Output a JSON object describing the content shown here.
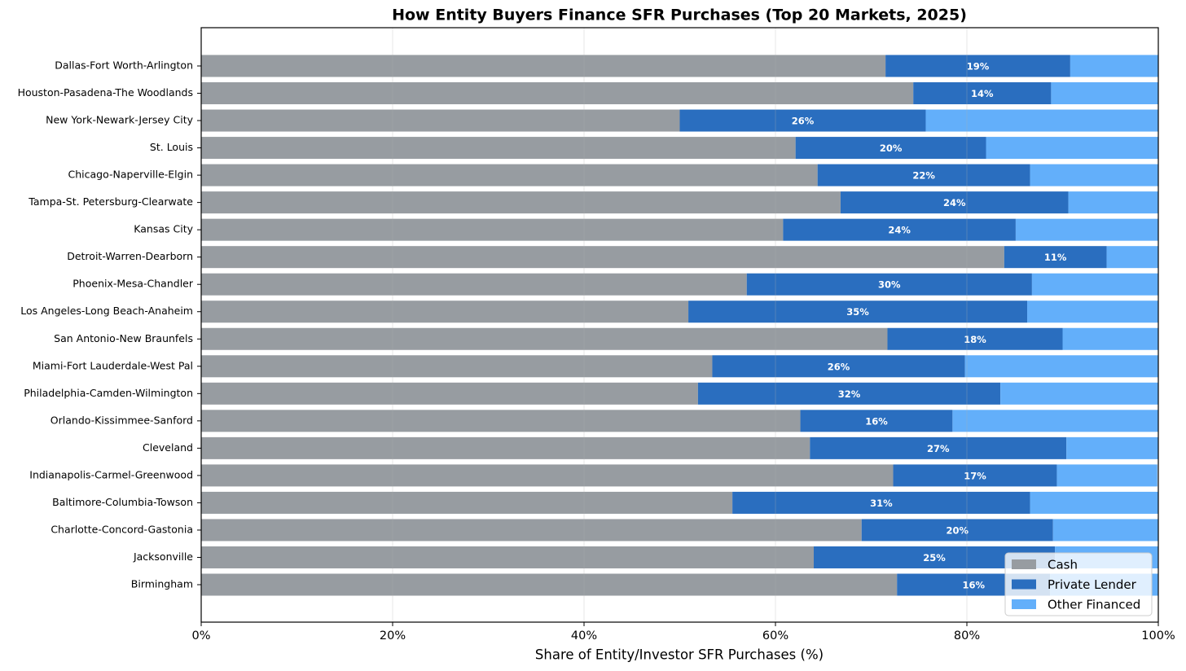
{
  "chart_data": {
    "type": "stacked-barh",
    "title": "How Entity Buyers Finance SFR Purchases (Top 20 Markets, 2025)",
    "x_label": "Share of Entity/Investor SFR Purchases (%)",
    "categories": [
      "Dallas-Fort Worth-Arlington",
      "Houston-Pasadena-The Woodlands",
      "New York-Newark-Jersey City",
      "St. Louis",
      "Chicago-Naperville-Elgin",
      "Tampa-St. Petersburg-Clearwate",
      "Kansas City",
      "Detroit-Warren-Dearborn",
      "Phoenix-Mesa-Chandler",
      "Los Angeles-Long Beach-Anaheim",
      "San Antonio-New Braunfels",
      "Miami-Fort Lauderdale-West Pal",
      "Philadelphia-Camden-Wilmington",
      "Orlando-Kissimmee-Sanford",
      "Cleveland",
      "Indianapolis-Carmel-Greenwood",
      "Baltimore-Columbia-Towson",
      "Charlotte-Concord-Gastonia",
      "Jacksonville",
      "Birmingham"
    ],
    "series": [
      {
        "name": "Cash",
        "color": "#979ca1",
        "values": [
          71.5,
          74.4,
          50.0,
          62.1,
          64.4,
          66.8,
          60.8,
          83.9,
          57.0,
          50.9,
          71.7,
          53.4,
          51.9,
          62.6,
          63.6,
          72.3,
          55.5,
          69.0,
          64.0,
          72.7
        ]
      },
      {
        "name": "Private Lender",
        "color": "#2a6ebf",
        "values": [
          19.3,
          14.4,
          25.7,
          19.9,
          22.2,
          23.8,
          24.3,
          10.7,
          29.8,
          35.4,
          18.3,
          26.4,
          31.6,
          15.9,
          26.8,
          17.1,
          31.1,
          20.0,
          25.2,
          16.0
        ],
        "value_labels": [
          "19%",
          "14%",
          "26%",
          "20%",
          "22%",
          "24%",
          "24%",
          "11%",
          "30%",
          "35%",
          "18%",
          "26%",
          "32%",
          "16%",
          "27%",
          "17%",
          "31%",
          "20%",
          "25%",
          "16%"
        ]
      },
      {
        "name": "Other Financed",
        "color": "#63affa",
        "values": [
          9.2,
          11.2,
          24.3,
          18.0,
          13.4,
          9.4,
          14.9,
          5.4,
          13.2,
          13.7,
          10.0,
          20.2,
          16.5,
          21.5,
          9.6,
          10.5,
          13.4,
          11.0,
          10.8,
          11.3
        ]
      }
    ],
    "xlim": [
      0,
      100
    ],
    "xticks": [
      {
        "value": 0,
        "label": "0%"
      },
      {
        "value": 20,
        "label": "20%"
      },
      {
        "value": 40,
        "label": "40%"
      },
      {
        "value": 60,
        "label": "60%"
      },
      {
        "value": 80,
        "label": "80%"
      },
      {
        "value": 100,
        "label": "100%"
      }
    ],
    "grid": true,
    "legend": "lower right"
  }
}
